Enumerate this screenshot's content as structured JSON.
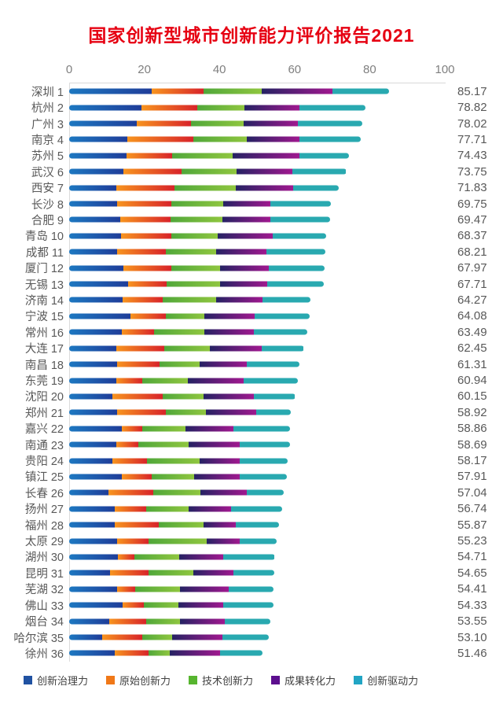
{
  "title": {
    "text": "国家创新型城市创新能力评价报告2021",
    "color": "#E60012"
  },
  "colors": {
    "grid": "#D9D9D9",
    "axis_text": "#7F7F7F",
    "label_text": "#595959",
    "legend_text": "#404040"
  },
  "legend": [
    {
      "label": "创新治理力",
      "color": "#2052A2"
    },
    {
      "label": "原始创新力",
      "color": "#F07818"
    },
    {
      "label": "技术创新力",
      "color": "#57B52F"
    },
    {
      "label": "成果转化力",
      "color": "#5C0E8E"
    },
    {
      "label": "创新驱动力",
      "color": "#21A5C4"
    }
  ],
  "chart_data": {
    "type": "bar",
    "stacked": true,
    "orientation": "horizontal",
    "title": "国家创新型城市创新能力评价报告2021",
    "xlim": [
      0,
      100
    ],
    "x_ticks": [
      0,
      20,
      40,
      60,
      80,
      100
    ],
    "grid": false,
    "legend_position": "bottom",
    "categories": [
      "深圳 1",
      "杭州 2",
      "广州 3",
      "南京 4",
      "苏州 5",
      "武汉 6",
      "西安 7",
      "长沙 8",
      "合肥 9",
      "青岛 10",
      "成都 11",
      "厦门 12",
      "无锡 13",
      "济南 14",
      "宁波 15",
      "常州 16",
      "大连 17",
      "南昌 18",
      "东莞 19",
      "沈阳 20",
      "郑州 21",
      "嘉兴 22",
      "南通 23",
      "贵阳 24",
      "镇江 25",
      "长春 26",
      "扬州 27",
      "福州 28",
      "太原 29",
      "湖州 30",
      "昆明 31",
      "芜湖 32",
      "佛山 33",
      "烟台 34",
      "哈尔滨 35",
      "徐州 36"
    ],
    "totals": [
      85.17,
      78.82,
      78.02,
      77.71,
      74.43,
      73.75,
      71.83,
      69.75,
      69.47,
      68.37,
      68.21,
      67.97,
      67.71,
      64.27,
      64.08,
      63.49,
      62.45,
      61.31,
      60.94,
      60.15,
      58.92,
      58.86,
      58.69,
      58.17,
      57.91,
      57.04,
      56.74,
      55.87,
      55.23,
      54.71,
      54.65,
      54.41,
      54.33,
      53.55,
      53.1,
      51.46
    ],
    "value_labels": [
      "85.17",
      "78.82",
      "78.02",
      "77.71",
      "74.43",
      "73.75",
      "71.83",
      "69.75",
      "69.47",
      "68.37",
      "68.21",
      "67.97",
      "67.71",
      "64.27",
      "64.08",
      "63.49",
      "62.45",
      "61.31",
      "60.94",
      "60.15",
      "58.92",
      "58.86",
      "58.69",
      "58.17",
      "57.91",
      "57.04",
      "56.74",
      "55.87",
      "55.23",
      "54.71",
      "54.65",
      "54.41",
      "54.33",
      "53.55",
      "53.10",
      "51.46"
    ],
    "series": [
      {
        "name": "创新治理力",
        "gradient": [
          "#1D78C1",
          "#1F3D99"
        ],
        "values": [
          21.9,
          19.2,
          18.0,
          15.4,
          15.2,
          14.5,
          12.6,
          12.8,
          13.5,
          13.8,
          12.8,
          14.5,
          15.6,
          14.2,
          16.3,
          14.0,
          12.6,
          12.8,
          12.6,
          11.6,
          12.8,
          14.0,
          12.6,
          11.6,
          14.0,
          10.5,
          12.2,
          12.1,
          12.8,
          12.9,
          10.8,
          12.8,
          14.2,
          10.7,
          8.7,
          12.1
        ]
      },
      {
        "name": "原始创新力",
        "gradient": [
          "#F7941E",
          "#D8232A"
        ],
        "values": [
          13.8,
          14.9,
          14.4,
          17.7,
          12.3,
          15.4,
          15.4,
          14.3,
          13.4,
          13.3,
          12.9,
          12.6,
          10.3,
          10.8,
          9.4,
          8.7,
          12.8,
          11.3,
          6.8,
          13.4,
          12.9,
          5.4,
          5.8,
          9.2,
          7.9,
          11.9,
          8.3,
          11.7,
          8.4,
          4.4,
          10.4,
          4.7,
          5.6,
          9.8,
          10.7,
          9.1
        ]
      },
      {
        "name": "技术创新力",
        "gradient": [
          "#50A73A",
          "#8FC63F"
        ],
        "values": [
          15.6,
          12.6,
          14.0,
          14.2,
          16.1,
          14.6,
          16.3,
          14.0,
          13.9,
          12.5,
          13.5,
          13.0,
          14.2,
          14.2,
          10.2,
          13.2,
          12.1,
          10.6,
          12.1,
          10.7,
          10.7,
          11.6,
          13.3,
          13.9,
          11.4,
          12.6,
          11.4,
          11.9,
          15.4,
          11.9,
          11.9,
          12.1,
          9.3,
          9.1,
          8.1,
          5.6
        ]
      },
      {
        "name": "成果转化力",
        "gradient": [
          "#252263",
          "#A0188F"
        ],
        "values": [
          18.8,
          14.6,
          14.4,
          14.0,
          17.7,
          14.9,
          15.3,
          12.4,
          12.8,
          14.6,
          13.4,
          13.0,
          12.7,
          12.2,
          13.4,
          13.2,
          13.7,
          12.5,
          15.0,
          13.4,
          13.4,
          12.8,
          13.8,
          10.6,
          12.0,
          12.3,
          11.3,
          8.7,
          8.9,
          11.9,
          10.7,
          12.9,
          12.0,
          11.9,
          13.3,
          13.3
        ]
      },
      {
        "name": "创新驱动力",
        "gradient": [
          "#29A9B0",
          "#29A9B0"
        ],
        "values": [
          15.07,
          17.52,
          17.22,
          16.41,
          13.13,
          14.35,
          12.23,
          16.25,
          15.87,
          14.17,
          15.61,
          14.87,
          14.91,
          12.87,
          14.78,
          14.39,
          11.25,
          14.11,
          14.44,
          11.05,
          9.12,
          15.06,
          13.19,
          12.87,
          12.61,
          9.74,
          13.54,
          11.47,
          9.73,
          13.61,
          10.85,
          11.91,
          13.23,
          12.05,
          12.3,
          11.36
        ]
      }
    ]
  }
}
